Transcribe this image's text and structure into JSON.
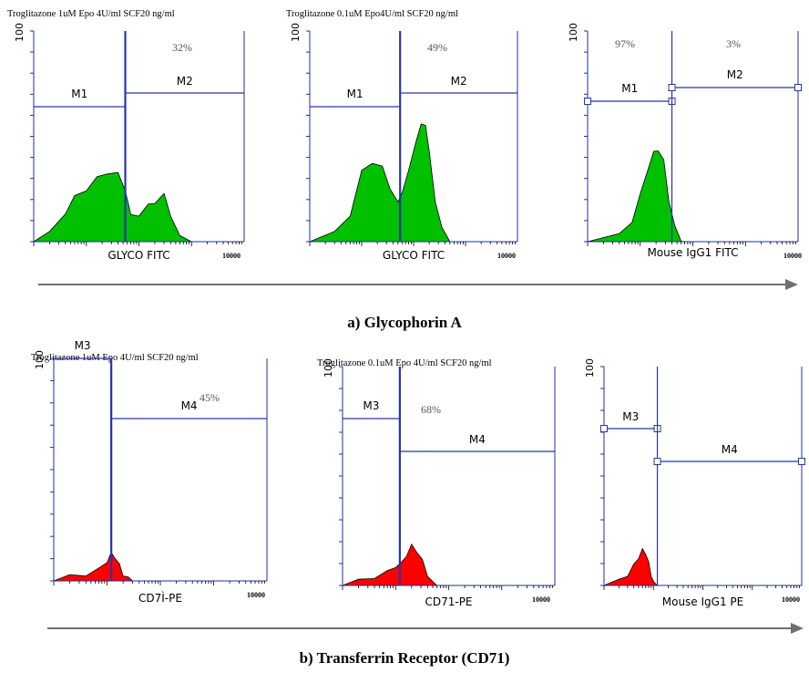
{
  "colors": {
    "axis": "#1f2fa0",
    "gate": "#2636a8",
    "glyco_fill": "#00c000",
    "cd71_fill": "#ff0000",
    "arrow": "#707070"
  },
  "sections": [
    {
      "label": "a) Glycophorin A"
    },
    {
      "label": "b) Transferrin Receptor (CD71)"
    }
  ],
  "chart_data": [
    {
      "type": "area",
      "title": "Troglitazone 1uM Epo 4U/ml SCF20 ng/ml",
      "xlabel": "GLYCO FITC",
      "x_scale": "log",
      "xlim": [
        1,
        10000
      ],
      "ylim": [
        0,
        100
      ],
      "tick_labels": {
        "y_max": "100",
        "x_max": "10000"
      },
      "fill": "#00c000",
      "gates": [
        {
          "name": "M1",
          "x_range": [
            1,
            55
          ]
        },
        {
          "name": "M2",
          "x_range": [
            55,
            10000
          ],
          "percent": "32%"
        }
      ],
      "series": [
        {
          "x": [
            1,
            2,
            4,
            6,
            10,
            16,
            25,
            40,
            55,
            70,
            100,
            150,
            200,
            300,
            400,
            600,
            1000
          ],
          "values": [
            0,
            4,
            14,
            21,
            25,
            30,
            33,
            32,
            25,
            12,
            13,
            17,
            19,
            22,
            13,
            2,
            0
          ]
        }
      ]
    },
    {
      "type": "area",
      "title": "Troglitazone 0.1uM Epo4U/ml SCF20 ng/ml",
      "xlabel": "GLYCO FITC",
      "x_scale": "log",
      "xlim": [
        1,
        10000
      ],
      "ylim": [
        0,
        100
      ],
      "tick_labels": {
        "y_max": "100",
        "x_max": "10000"
      },
      "fill": "#00c000",
      "gates": [
        {
          "name": "M1",
          "x_range": [
            1,
            55
          ]
        },
        {
          "name": "M2",
          "x_range": [
            55,
            10000
          ],
          "percent": "49%"
        }
      ],
      "series": [
        {
          "x": [
            1,
            3,
            6,
            10,
            16,
            25,
            35,
            50,
            60,
            80,
            110,
            140,
            170,
            200,
            260,
            350,
            500
          ],
          "values": [
            0,
            4,
            13,
            33,
            38,
            35,
            26,
            18,
            24,
            33,
            48,
            55,
            56,
            42,
            20,
            6,
            0
          ]
        }
      ]
    },
    {
      "type": "area",
      "title": "",
      "xlabel": "Mouse IgG1 FITC",
      "x_scale": "log",
      "xlim": [
        1,
        10000
      ],
      "ylim": [
        0,
        100
      ],
      "tick_labels": {
        "y_max": "100",
        "x_max": "10000"
      },
      "fill": "#00c000",
      "gates": [
        {
          "name": "M1",
          "x_range": [
            1,
            40
          ],
          "percent": "97%"
        },
        {
          "name": "M2",
          "x_range": [
            40,
            10000
          ],
          "percent": "3%"
        }
      ],
      "series": [
        {
          "x": [
            1,
            4,
            7,
            10,
            14,
            18,
            22,
            28,
            35,
            45,
            60,
            80
          ],
          "values": [
            0,
            3,
            10,
            22,
            35,
            42,
            44,
            38,
            20,
            7,
            1,
            0
          ]
        }
      ]
    },
    {
      "type": "area",
      "title": "Troglitazone 1uM Epo 4U/ml SCF20 ng/ml",
      "xlabel": "CD7Ì-PE",
      "x_scale": "log",
      "xlim": [
        1,
        10000
      ],
      "ylim": [
        0,
        100
      ],
      "tick_labels": {
        "y_max": "100",
        "x_max": "10000"
      },
      "fill": "#ff0000",
      "gates": [
        {
          "name": "M3",
          "x_range": [
            1,
            12
          ]
        },
        {
          "name": "M4",
          "x_range": [
            12,
            10000
          ],
          "percent": "45%"
        }
      ],
      "series": [
        {
          "x": [
            1,
            2,
            4,
            7,
            10,
            12,
            14,
            17,
            20,
            25,
            30
          ],
          "values": [
            0,
            2,
            3,
            5,
            9,
            12,
            11,
            7,
            3,
            1,
            0
          ]
        }
      ]
    },
    {
      "type": "area",
      "title": "Troglitazone 0.1uM Epo 4U/ml SCF20 ng/ml",
      "xlabel": "CD71-PE",
      "x_scale": "log",
      "xlim": [
        1,
        10000
      ],
      "ylim": [
        0,
        100
      ],
      "tick_labels": {
        "y_max": "100",
        "x_max": "10000"
      },
      "fill": "#ff0000",
      "gates": [
        {
          "name": "M3",
          "x_range": [
            1,
            12
          ]
        },
        {
          "name": "M4",
          "x_range": [
            12,
            10000
          ],
          "percent": "68%"
        }
      ],
      "series": [
        {
          "x": [
            1,
            2,
            4,
            7,
            10,
            13,
            16,
            20,
            25,
            32,
            40,
            50,
            60
          ],
          "values": [
            0,
            2,
            4,
            6,
            9,
            10,
            14,
            18,
            16,
            11,
            5,
            1,
            0
          ]
        }
      ]
    },
    {
      "type": "area",
      "title": "",
      "xlabel": "Mouse IgG1 PE",
      "x_scale": "log",
      "xlim": [
        1,
        10000
      ],
      "ylim": [
        0,
        100
      ],
      "tick_labels": {
        "y_max": "100",
        "x_max": "10000"
      },
      "fill": "#ff0000",
      "gates": [
        {
          "name": "M3",
          "x_range": [
            1,
            12
          ]
        },
        {
          "name": "M4",
          "x_range": [
            12,
            10000
          ]
        }
      ],
      "series": [
        {
          "x": [
            1,
            2,
            3,
            4,
            5,
            6,
            7,
            8,
            9,
            10,
            12
          ],
          "values": [
            0,
            2,
            5,
            9,
            13,
            16,
            15,
            10,
            5,
            1,
            0
          ]
        }
      ]
    }
  ]
}
